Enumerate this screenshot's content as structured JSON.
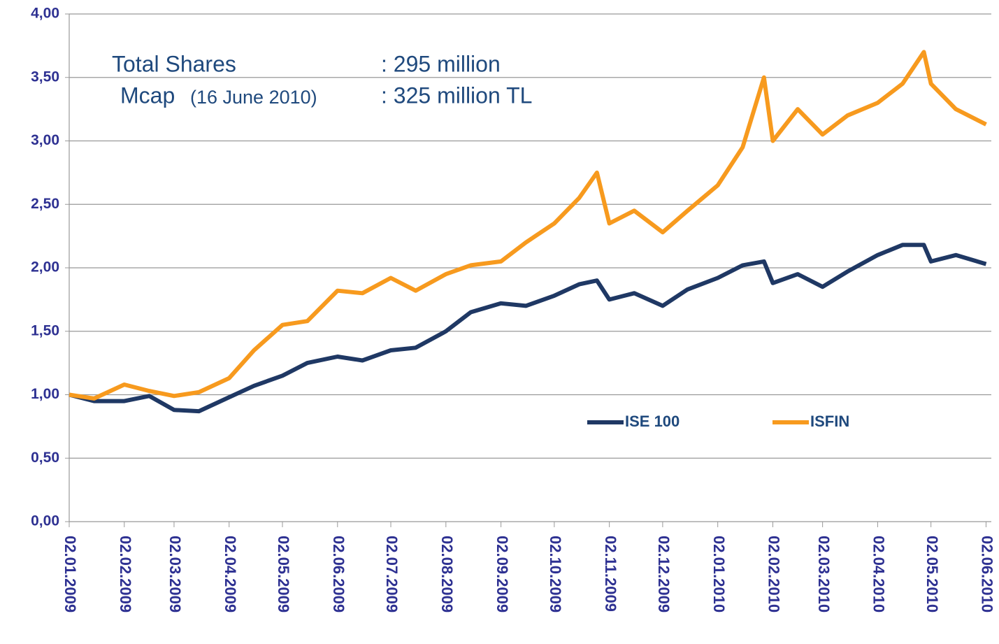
{
  "chart_data": {
    "type": "line",
    "annotations": [
      {
        "text": "Total Shares",
        "value_text": ": 295 million"
      },
      {
        "text": "Mcap",
        "note": "(16 June 2010)",
        "value_text": ": 325 million TL"
      }
    ],
    "x": [
      "2009-01-02",
      "2009-01-16",
      "2009-02-02",
      "2009-02-16",
      "2009-03-02",
      "2009-03-16",
      "2009-04-02",
      "2009-04-16",
      "2009-05-02",
      "2009-05-16",
      "2009-06-02",
      "2009-06-16",
      "2009-07-02",
      "2009-07-16",
      "2009-08-02",
      "2009-08-16",
      "2009-09-02",
      "2009-09-16",
      "2009-10-02",
      "2009-10-16",
      "2009-10-26",
      "2009-11-02",
      "2009-11-16",
      "2009-12-02",
      "2009-12-16",
      "2010-01-02",
      "2010-01-16",
      "2010-01-28",
      "2010-02-02",
      "2010-02-16",
      "2010-03-02",
      "2010-03-16",
      "2010-04-02",
      "2010-04-16",
      "2010-04-28",
      "2010-05-02",
      "2010-05-16",
      "2010-06-02"
    ],
    "series": [
      {
        "name": "ISE 100",
        "color": "#1f3864",
        "values": [
          1.0,
          0.95,
          0.95,
          0.99,
          0.88,
          0.87,
          0.98,
          1.07,
          1.15,
          1.25,
          1.3,
          1.27,
          1.35,
          1.37,
          1.5,
          1.65,
          1.72,
          1.7,
          1.78,
          1.87,
          1.9,
          1.75,
          1.8,
          1.7,
          1.83,
          1.92,
          2.02,
          2.05,
          1.88,
          1.95,
          1.85,
          1.97,
          2.1,
          2.18,
          2.18,
          2.05,
          2.1,
          2.03
        ]
      },
      {
        "name": "ISFIN",
        "color": "#f79a1e",
        "values": [
          1.0,
          0.97,
          1.08,
          1.03,
          0.99,
          1.02,
          1.13,
          1.35,
          1.55,
          1.58,
          1.82,
          1.8,
          1.92,
          1.82,
          1.95,
          2.02,
          2.05,
          2.2,
          2.35,
          2.55,
          2.75,
          2.35,
          2.45,
          2.28,
          2.45,
          2.65,
          2.95,
          3.5,
          3.0,
          3.25,
          3.05,
          3.2,
          3.3,
          3.45,
          3.7,
          3.45,
          3.25,
          3.13
        ]
      }
    ],
    "xlim": [
      "2009-01-02",
      "2010-06-03"
    ],
    "xticks": [
      {
        "value": "2009-01-02",
        "label": "02.01.2009"
      },
      {
        "value": "2009-02-02",
        "label": "02.02.2009"
      },
      {
        "value": "2009-03-02",
        "label": "02.03.2009"
      },
      {
        "value": "2009-04-02",
        "label": "02.04.2009"
      },
      {
        "value": "2009-05-02",
        "label": "02.05.2009"
      },
      {
        "value": "2009-06-02",
        "label": "02.06.2009"
      },
      {
        "value": "2009-07-02",
        "label": "02.07.2009"
      },
      {
        "value": "2009-08-02",
        "label": "02.08.2009"
      },
      {
        "value": "2009-09-02",
        "label": "02.09.2009"
      },
      {
        "value": "2009-10-02",
        "label": "02.10.2009"
      },
      {
        "value": "2009-11-02",
        "label": "02.11.2009"
      },
      {
        "value": "2009-12-02",
        "label": "02.12.2009"
      },
      {
        "value": "2010-01-02",
        "label": "02.01.2010"
      },
      {
        "value": "2010-02-02",
        "label": "02.02.2010"
      },
      {
        "value": "2010-03-02",
        "label": "02.03.2010"
      },
      {
        "value": "2010-04-02",
        "label": "02.04.2010"
      },
      {
        "value": "2010-05-02",
        "label": "02.05.2010"
      },
      {
        "value": "2010-06-02",
        "label": "02.06.2010"
      }
    ],
    "ylim": [
      0,
      4
    ],
    "yticks": [
      {
        "value": 0,
        "label": "0,00"
      },
      {
        "value": 0.5,
        "label": "0,50"
      },
      {
        "value": 1,
        "label": "1,00"
      },
      {
        "value": 1.5,
        "label": "1,50"
      },
      {
        "value": 2,
        "label": "2,00"
      },
      {
        "value": 2.5,
        "label": "2,50"
      },
      {
        "value": 3,
        "label": "3,00"
      },
      {
        "value": 3.5,
        "label": "3,50"
      },
      {
        "value": 4,
        "label": "4,00"
      }
    ],
    "grid": true
  }
}
